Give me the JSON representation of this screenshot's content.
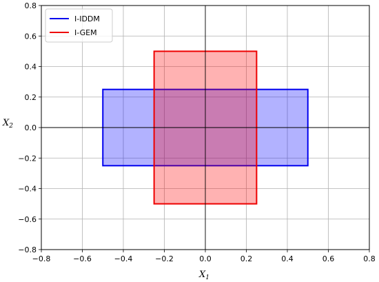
{
  "chart_data": {
    "type": "area",
    "xlabel": "X",
    "xlabel_sub": "1",
    "ylabel": "X",
    "ylabel_sub": "2",
    "xlim": [
      -0.8,
      0.8
    ],
    "ylim": [
      -0.8,
      0.8
    ],
    "xticks": [
      -0.8,
      -0.6,
      -0.4,
      -0.2,
      0.0,
      0.2,
      0.4,
      0.6,
      0.8
    ],
    "yticks": [
      -0.8,
      -0.6,
      -0.4,
      -0.2,
      0.0,
      0.2,
      0.4,
      0.6,
      0.8
    ],
    "xtick_labels": [
      "−0.8",
      "−0.6",
      "−0.4",
      "−0.2",
      "0.0",
      "0.2",
      "0.4",
      "0.6",
      "0.8"
    ],
    "ytick_labels": [
      "−0.8",
      "−0.6",
      "−0.4",
      "−0.2",
      "0.0",
      "0.2",
      "0.4",
      "0.6",
      "0.8"
    ],
    "grid": true,
    "legend_position": "top-left",
    "series": [
      {
        "name": "I-IDDM",
        "edge_color": "#0000ee",
        "fill_color": "#0000ff",
        "fill_alpha": 0.3,
        "x_range": [
          -0.5,
          0.5
        ],
        "y_range": [
          -0.25,
          0.25
        ]
      },
      {
        "name": "I-GEM",
        "edge_color": "#ee0000",
        "fill_color": "#ff0000",
        "fill_alpha": 0.3,
        "x_range": [
          -0.25,
          0.25
        ],
        "y_range": [
          -0.5,
          0.5
        ]
      }
    ]
  }
}
